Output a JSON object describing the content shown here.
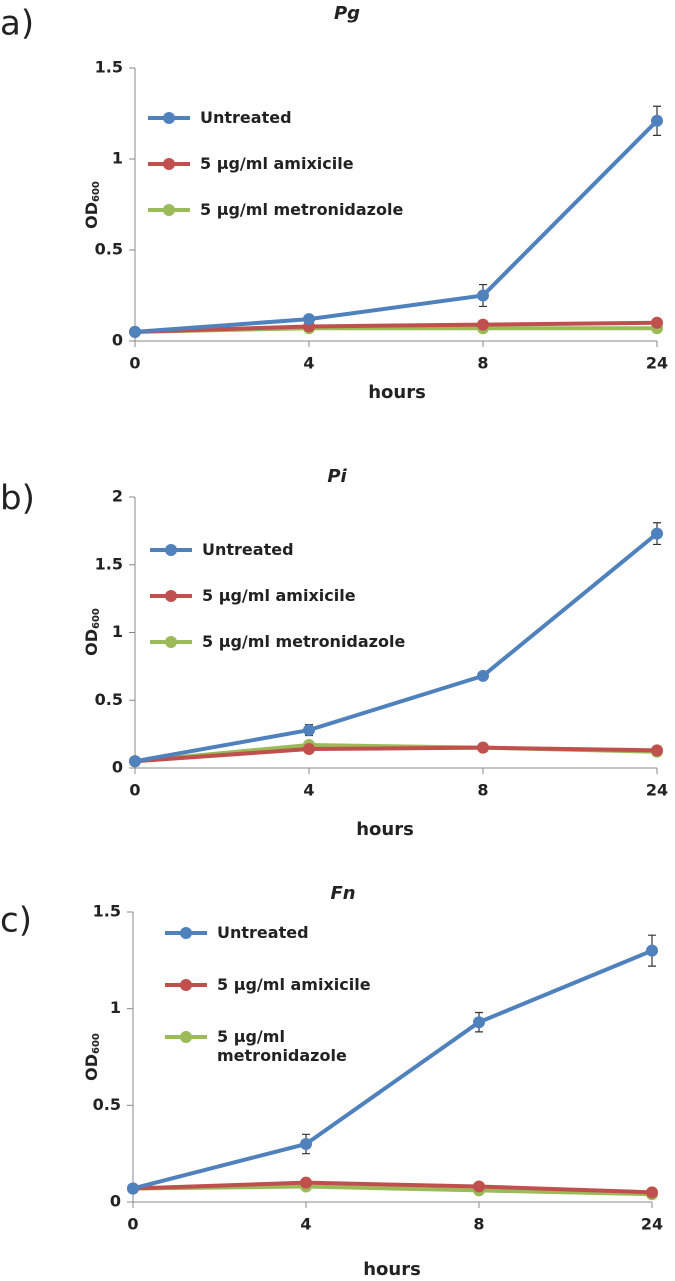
{
  "chart_data": [
    {
      "type": "line",
      "panel_label": "a)",
      "title": "Pg",
      "x_label": "hours",
      "y_label": "OD",
      "y_label_sub": "600",
      "categories": [
        "0",
        "4",
        "8",
        "24"
      ],
      "ylim": [
        0,
        1.5
      ],
      "yticks": [
        0,
        0.5,
        1,
        1.5
      ],
      "series": [
        {
          "name": "Untreated",
          "color": "#4f81bd",
          "values": [
            0.05,
            0.12,
            0.25,
            1.21
          ],
          "errors": [
            0.01,
            0.01,
            0.06,
            0.08
          ]
        },
        {
          "name": "5 µg/ml amixicile",
          "color": "#c0504d",
          "values": [
            0.05,
            0.08,
            0.09,
            0.1
          ]
        },
        {
          "name": "5 µg/ml metronidazole",
          "color": "#9bbb59",
          "values": [
            0.05,
            0.07,
            0.07,
            0.07
          ]
        }
      ]
    },
    {
      "type": "line",
      "panel_label": "b)",
      "title": "Pi",
      "x_label": "hours",
      "y_label": "OD",
      "y_label_sub": "600",
      "categories": [
        "0",
        "4",
        "8",
        "24"
      ],
      "ylim": [
        0,
        2
      ],
      "yticks": [
        0,
        0.5,
        1,
        1.5,
        2
      ],
      "series": [
        {
          "name": "Untreated",
          "color": "#4f81bd",
          "values": [
            0.05,
            0.28,
            0.68,
            1.73
          ],
          "errors": [
            0.01,
            0.04,
            0.02,
            0.08
          ]
        },
        {
          "name": "5 µg/ml amixicile",
          "color": "#c0504d",
          "values": [
            0.05,
            0.14,
            0.15,
            0.13
          ]
        },
        {
          "name": "5 µg/ml metronidazole",
          "color": "#9bbb59",
          "values": [
            0.05,
            0.17,
            0.15,
            0.12
          ]
        }
      ]
    },
    {
      "type": "line",
      "panel_label": "c)",
      "title": "Fn",
      "x_label": "hours",
      "y_label": "OD",
      "y_label_sub": "600",
      "categories": [
        "0",
        "4",
        "8",
        "24"
      ],
      "ylim": [
        0,
        1.5
      ],
      "yticks": [
        0,
        0.5,
        1,
        1.5
      ],
      "series": [
        {
          "name": "Untreated",
          "color": "#4f81bd",
          "values": [
            0.07,
            0.3,
            0.93,
            1.3
          ],
          "errors": [
            0.01,
            0.05,
            0.05,
            0.08
          ]
        },
        {
          "name": "5 µg/ml amixicile",
          "color": "#c0504d",
          "values": [
            0.07,
            0.1,
            0.08,
            0.05
          ]
        },
        {
          "name": "5 µg/ml metronidazole",
          "color": "#9bbb59",
          "values": [
            0.07,
            0.08,
            0.06,
            0.04
          ]
        }
      ]
    }
  ]
}
